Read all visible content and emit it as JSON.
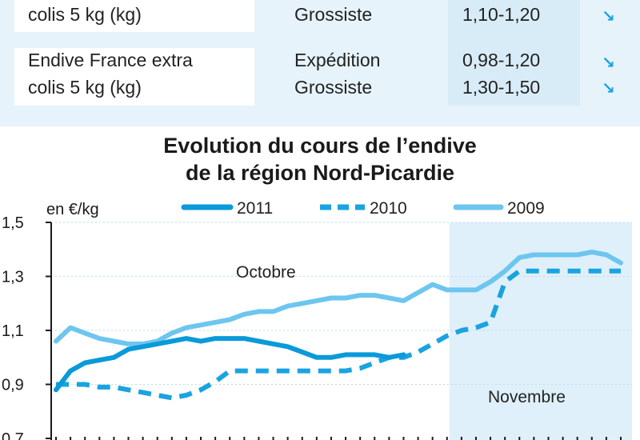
{
  "table": {
    "rows": [
      {
        "product": [
          "colis 5 kg (kg)"
        ],
        "stages": [
          "Grossiste"
        ],
        "prices": [
          "1,10-1,20"
        ],
        "trends": [
          "down"
        ]
      },
      {
        "product": [
          "Endive France extra",
          "colis 5 kg (kg)"
        ],
        "stages": [
          "Expédition",
          "Grossiste"
        ],
        "prices": [
          "0,98-1,20",
          "1,30-1,50"
        ],
        "trends": [
          "down",
          "down"
        ]
      }
    ],
    "trend_icon": "down-right-arrow-icon"
  },
  "chart_data": {
    "type": "line",
    "title": [
      "Evolution du cours de l’endive",
      "de la région Nord-Picardie"
    ],
    "unit_label": "en €/kg",
    "ylim": [
      0.7,
      1.5
    ],
    "yticks": [
      "1,5",
      "1,3",
      "1,1",
      "0,9",
      "0,7"
    ],
    "ytick_values": [
      1.5,
      1.3,
      1.1,
      0.9,
      0.7
    ],
    "xlim": [
      1,
      40
    ],
    "period_labels": [
      "Octobre",
      "Novembre"
    ],
    "period_split_x": 29,
    "legend": [
      "2011",
      "2010",
      "2009"
    ],
    "colors": {
      "2011": "#0a9ad9",
      "2010": "#1aa3e0",
      "2009": "#6dc6ef",
      "novembre_bg": "#dff0fa"
    },
    "series": [
      {
        "name": "2011",
        "style": "solid",
        "x": [
          1,
          2,
          3,
          4,
          5,
          6,
          7,
          8,
          9,
          10,
          11,
          12,
          13,
          14,
          15,
          16,
          17,
          18,
          19,
          20,
          21,
          22,
          23,
          24,
          25
        ],
        "values": [
          0.88,
          0.95,
          0.98,
          0.99,
          1.0,
          1.03,
          1.04,
          1.05,
          1.06,
          1.07,
          1.06,
          1.07,
          1.07,
          1.07,
          1.06,
          1.05,
          1.04,
          1.02,
          1.0,
          1.0,
          1.01,
          1.01,
          1.01,
          1.0,
          1.01
        ]
      },
      {
        "name": "2010",
        "style": "dashed",
        "x": [
          1,
          2,
          3,
          4,
          5,
          6,
          7,
          8,
          9,
          10,
          11,
          12,
          13,
          14,
          15,
          16,
          17,
          18,
          19,
          20,
          21,
          22,
          23,
          24,
          25,
          26,
          27,
          28,
          29,
          30,
          31,
          32,
          33,
          34,
          35,
          36,
          37,
          38,
          39,
          40
        ],
        "values": [
          0.9,
          0.9,
          0.9,
          0.89,
          0.89,
          0.88,
          0.87,
          0.86,
          0.85,
          0.86,
          0.88,
          0.91,
          0.95,
          0.95,
          0.95,
          0.95,
          0.95,
          0.95,
          0.95,
          0.95,
          0.95,
          0.96,
          0.98,
          1.0,
          1.0,
          1.02,
          1.05,
          1.08,
          1.1,
          1.11,
          1.13,
          1.28,
          1.32,
          1.32,
          1.32,
          1.32,
          1.32,
          1.32,
          1.32,
          1.32
        ]
      },
      {
        "name": "2009",
        "style": "solid",
        "x": [
          1,
          2,
          3,
          4,
          5,
          6,
          7,
          8,
          9,
          10,
          11,
          12,
          13,
          14,
          15,
          16,
          17,
          18,
          19,
          20,
          21,
          22,
          23,
          24,
          25,
          26,
          27,
          28,
          29,
          30,
          31,
          32,
          33,
          34,
          35,
          36,
          37,
          38,
          39,
          40
        ],
        "values": [
          1.06,
          1.11,
          1.09,
          1.07,
          1.06,
          1.05,
          1.05,
          1.06,
          1.09,
          1.11,
          1.12,
          1.13,
          1.14,
          1.16,
          1.17,
          1.17,
          1.19,
          1.2,
          1.21,
          1.22,
          1.22,
          1.23,
          1.23,
          1.22,
          1.21,
          1.24,
          1.27,
          1.25,
          1.25,
          1.25,
          1.28,
          1.32,
          1.37,
          1.38,
          1.38,
          1.38,
          1.38,
          1.39,
          1.38,
          1.35
        ]
      }
    ]
  }
}
